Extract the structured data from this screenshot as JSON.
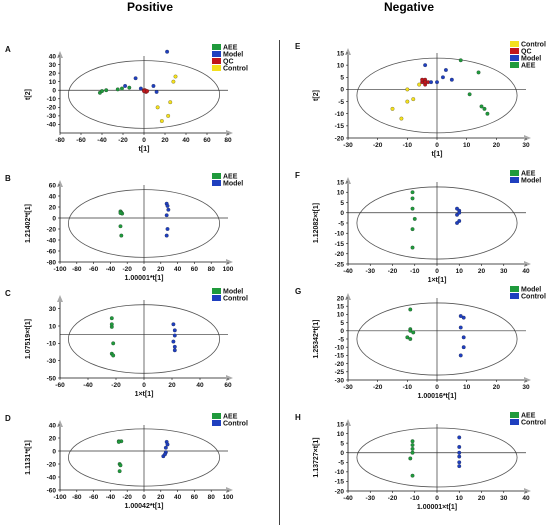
{
  "headings": {
    "left": "Positive",
    "right": "Negative"
  },
  "colors": {
    "green": "#1f9a3c",
    "blue": "#1f3fbf",
    "red": "#c0161b",
    "yellow": "#f4e01d"
  },
  "chart_data": [
    {
      "type": "scatter",
      "panel": "A",
      "xlabel": "t[1]",
      "ylabel": "t[2]",
      "xlim": [
        -80,
        80
      ],
      "ylim": [
        -50,
        40
      ],
      "xticks": [
        -80,
        -60,
        -40,
        -20,
        0,
        20,
        40,
        60,
        80
      ],
      "yticks": [
        -40,
        -30,
        -20,
        -10,
        0,
        10,
        20,
        30,
        40
      ],
      "legend": [
        {
          "name": "AEE",
          "color": "green"
        },
        {
          "name": "Model",
          "color": "blue"
        },
        {
          "name": "QC",
          "color": "red"
        },
        {
          "name": "Control",
          "color": "yellow"
        }
      ],
      "series": [
        {
          "name": "AEE",
          "color": "green",
          "points": [
            [
              -42,
              -3
            ],
            [
              -40,
              -1
            ],
            [
              -36,
              0
            ],
            [
              -25,
              1
            ],
            [
              -21,
              2
            ],
            [
              -14,
              3
            ]
          ]
        },
        {
          "name": "Model",
          "color": "blue",
          "points": [
            [
              -18,
              5
            ],
            [
              -8,
              14
            ],
            [
              -3,
              2
            ],
            [
              9,
              5
            ],
            [
              12,
              -2
            ],
            [
              22,
              45
            ]
          ]
        },
        {
          "name": "QC",
          "color": "red",
          "points": [
            [
              0,
              0
            ],
            [
              1,
              -1
            ],
            [
              2,
              -2
            ],
            [
              1,
              0
            ],
            [
              0,
              -1
            ],
            [
              3,
              -1
            ]
          ]
        },
        {
          "name": "Control",
          "color": "yellow",
          "points": [
            [
              13,
              -20
            ],
            [
              17,
              -36
            ],
            [
              23,
              -30
            ],
            [
              25,
              -14
            ],
            [
              28,
              10
            ],
            [
              30,
              16
            ]
          ]
        }
      ]
    },
    {
      "type": "scatter",
      "panel": "E",
      "xlabel": "t[1]",
      "ylabel": "t[2]",
      "xlim": [
        -30,
        30
      ],
      "ylim": [
        -20,
        15
      ],
      "xticks": [
        -30,
        -20,
        -10,
        0,
        10,
        20,
        30
      ],
      "yticks": [
        -20,
        -15,
        -10,
        -5,
        0,
        5,
        10,
        15
      ],
      "legend": [
        {
          "name": "Control",
          "color": "yellow"
        },
        {
          "name": "QC",
          "color": "red"
        },
        {
          "name": "Model",
          "color": "blue"
        },
        {
          "name": "AEE",
          "color": "green"
        }
      ],
      "series": [
        {
          "name": "Control",
          "color": "yellow",
          "points": [
            [
              -15,
              -8
            ],
            [
              -12,
              -12
            ],
            [
              -10,
              -5
            ],
            [
              -10,
              0
            ],
            [
              -8,
              -4
            ],
            [
              -6,
              2
            ]
          ]
        },
        {
          "name": "QC",
          "color": "red",
          "points": [
            [
              -5,
              3
            ],
            [
              -4,
              4
            ],
            [
              -4,
              2
            ],
            [
              -3,
              3
            ],
            [
              -5,
              4
            ],
            [
              -4,
              3
            ]
          ]
        },
        {
          "name": "Model",
          "color": "blue",
          "points": [
            [
              -4,
              10
            ],
            [
              -2,
              3
            ],
            [
              0,
              3
            ],
            [
              2,
              5
            ],
            [
              3,
              8
            ],
            [
              5,
              4
            ]
          ]
        },
        {
          "name": "AEE",
          "color": "green",
          "points": [
            [
              8,
              12
            ],
            [
              11,
              -2
            ],
            [
              14,
              7
            ],
            [
              15,
              -7
            ],
            [
              16,
              -8
            ],
            [
              17,
              -10
            ]
          ]
        }
      ]
    },
    {
      "type": "scatter",
      "panel": "B",
      "xlabel": "1.00001*t[1]",
      "ylabel": "1.21402*t[1]",
      "xlim": [
        -100,
        100
      ],
      "ylim": [
        -80,
        60
      ],
      "xticks": [
        -100,
        -80,
        -60,
        -40,
        -20,
        0,
        20,
        40,
        60,
        80,
        100
      ],
      "yticks": [
        -80,
        -60,
        -40,
        -20,
        0,
        20,
        40,
        60
      ],
      "legend": [
        {
          "name": "AEE",
          "color": "green"
        },
        {
          "name": "Model",
          "color": "blue"
        }
      ],
      "series": [
        {
          "name": "AEE",
          "color": "green",
          "points": [
            [
              -28,
              12
            ],
            [
              -27,
              10
            ],
            [
              -26,
              8
            ],
            [
              -28,
              -15
            ],
            [
              -27,
              -32
            ],
            [
              -28,
              9
            ]
          ]
        },
        {
          "name": "Model",
          "color": "blue",
          "points": [
            [
              27,
              26
            ],
            [
              28,
              22
            ],
            [
              29,
              15
            ],
            [
              27,
              5
            ],
            [
              28,
              -20
            ],
            [
              27,
              -32
            ]
          ]
        }
      ]
    },
    {
      "type": "scatter",
      "panel": "F",
      "xlabel": "1×t[1]",
      "ylabel": "1.12082×t[1]",
      "xlim": [
        -40,
        40
      ],
      "ylim": [
        -25,
        15
      ],
      "xticks": [
        -40,
        -30,
        -20,
        -10,
        0,
        10,
        20,
        30,
        40
      ],
      "yticks": [
        -25,
        -20,
        -15,
        -10,
        -5,
        0,
        5,
        10,
        15
      ],
      "legend": [
        {
          "name": "AEE",
          "color": "green"
        },
        {
          "name": "Model",
          "color": "blue"
        }
      ],
      "series": [
        {
          "name": "AEE",
          "color": "green",
          "points": [
            [
              -11,
              10
            ],
            [
              -11,
              7
            ],
            [
              -11,
              2
            ],
            [
              -10,
              -3
            ],
            [
              -11,
              -8
            ],
            [
              -11,
              -17
            ]
          ]
        },
        {
          "name": "Model",
          "color": "blue",
          "points": [
            [
              9,
              2
            ],
            [
              10,
              1
            ],
            [
              9,
              -1
            ],
            [
              10,
              -4
            ],
            [
              9,
              -5
            ],
            [
              10,
              0
            ]
          ]
        }
      ]
    },
    {
      "type": "scatter",
      "panel": "C",
      "xlabel": "1×t[1]",
      "ylabel": "1.07519×t[1]",
      "xlim": [
        -60,
        60
      ],
      "ylim": [
        -50,
        40
      ],
      "xticks": [
        -60,
        -40,
        -20,
        0,
        20,
        40,
        60
      ],
      "yticks": [
        -50,
        -30,
        -10,
        10,
        30
      ],
      "legend": [
        {
          "name": "Model",
          "color": "green"
        },
        {
          "name": "Control",
          "color": "blue"
        }
      ],
      "series": [
        {
          "name": "Model",
          "color": "green",
          "points": [
            [
              -23,
              19
            ],
            [
              -23,
              9
            ],
            [
              -22,
              -10
            ],
            [
              -23,
              -22
            ],
            [
              -22,
              -24
            ],
            [
              -23,
              12
            ]
          ]
        },
        {
          "name": "Control",
          "color": "blue",
          "points": [
            [
              21,
              12
            ],
            [
              22,
              5
            ],
            [
              22,
              -1
            ],
            [
              21,
              -8
            ],
            [
              22,
              -14
            ],
            [
              22,
              -18
            ]
          ]
        }
      ]
    },
    {
      "type": "scatter",
      "panel": "G",
      "xlabel": "1.00016*t[1]",
      "ylabel": "1.25342*t[1]",
      "xlim": [
        -30,
        30
      ],
      "ylim": [
        -30,
        20
      ],
      "xticks": [
        -30,
        -20,
        -10,
        0,
        10,
        20,
        30
      ],
      "yticks": [
        -30,
        -25,
        -20,
        -15,
        -10,
        -5,
        0,
        5,
        10,
        15,
        20
      ],
      "legend": [
        {
          "name": "Model",
          "color": "green"
        },
        {
          "name": "Control",
          "color": "blue"
        }
      ],
      "series": [
        {
          "name": "Model",
          "color": "green",
          "points": [
            [
              -9,
              13
            ],
            [
              -9,
              1
            ],
            [
              -9,
              0
            ],
            [
              -8,
              -1
            ],
            [
              -9,
              -5
            ],
            [
              -10,
              -4
            ]
          ]
        },
        {
          "name": "Control",
          "color": "blue",
          "points": [
            [
              8,
              9
            ],
            [
              9,
              8
            ],
            [
              8,
              2
            ],
            [
              9,
              -4
            ],
            [
              9,
              -10
            ],
            [
              8,
              -15
            ]
          ]
        }
      ]
    },
    {
      "type": "scatter",
      "panel": "D",
      "xlabel": "1.00042*t[1]",
      "ylabel": "1.1131*t[1]",
      "xlim": [
        -100,
        100
      ],
      "ylim": [
        -60,
        40
      ],
      "xticks": [
        -100,
        -80,
        -60,
        -40,
        -20,
        0,
        20,
        40,
        60,
        80,
        100
      ],
      "yticks": [
        -60,
        -40,
        -20,
        0,
        20,
        40
      ],
      "legend": [
        {
          "name": "AEE",
          "color": "green"
        },
        {
          "name": "Control",
          "color": "blue"
        }
      ],
      "series": [
        {
          "name": "AEE",
          "color": "green",
          "points": [
            [
              -30,
              15
            ],
            [
              -27,
              15
            ],
            [
              -29,
              -20
            ],
            [
              -29,
              -31
            ],
            [
              -30,
              14
            ],
            [
              -28,
              -22
            ]
          ]
        },
        {
          "name": "Control",
          "color": "blue",
          "points": [
            [
              27,
              14
            ],
            [
              28,
              10
            ],
            [
              26,
              5
            ],
            [
              26,
              -2
            ],
            [
              23,
              -8
            ],
            [
              25,
              -5
            ]
          ]
        }
      ]
    },
    {
      "type": "scatter",
      "panel": "H",
      "xlabel": "1.00001×t[1]",
      "ylabel": "1.13727×t[1]",
      "xlim": [
        -40,
        40
      ],
      "ylim": [
        -20,
        15
      ],
      "xticks": [
        -40,
        -30,
        -20,
        -10,
        0,
        10,
        20,
        30,
        40
      ],
      "yticks": [
        -20,
        -15,
        -10,
        -5,
        0,
        5,
        10,
        15
      ],
      "legend": [
        {
          "name": "AEE",
          "color": "green"
        },
        {
          "name": "Control",
          "color": "blue"
        }
      ],
      "series": [
        {
          "name": "AEE",
          "color": "green",
          "points": [
            [
              -11,
              6
            ],
            [
              -11,
              4
            ],
            [
              -11,
              2
            ],
            [
              -12,
              -3
            ],
            [
              -11,
              0
            ],
            [
              -11,
              -12
            ]
          ]
        },
        {
          "name": "Control",
          "color": "blue",
          "points": [
            [
              10,
              8
            ],
            [
              10,
              3
            ],
            [
              10,
              0
            ],
            [
              10,
              -2
            ],
            [
              10,
              -5
            ],
            [
              10,
              -7
            ]
          ]
        }
      ]
    }
  ]
}
